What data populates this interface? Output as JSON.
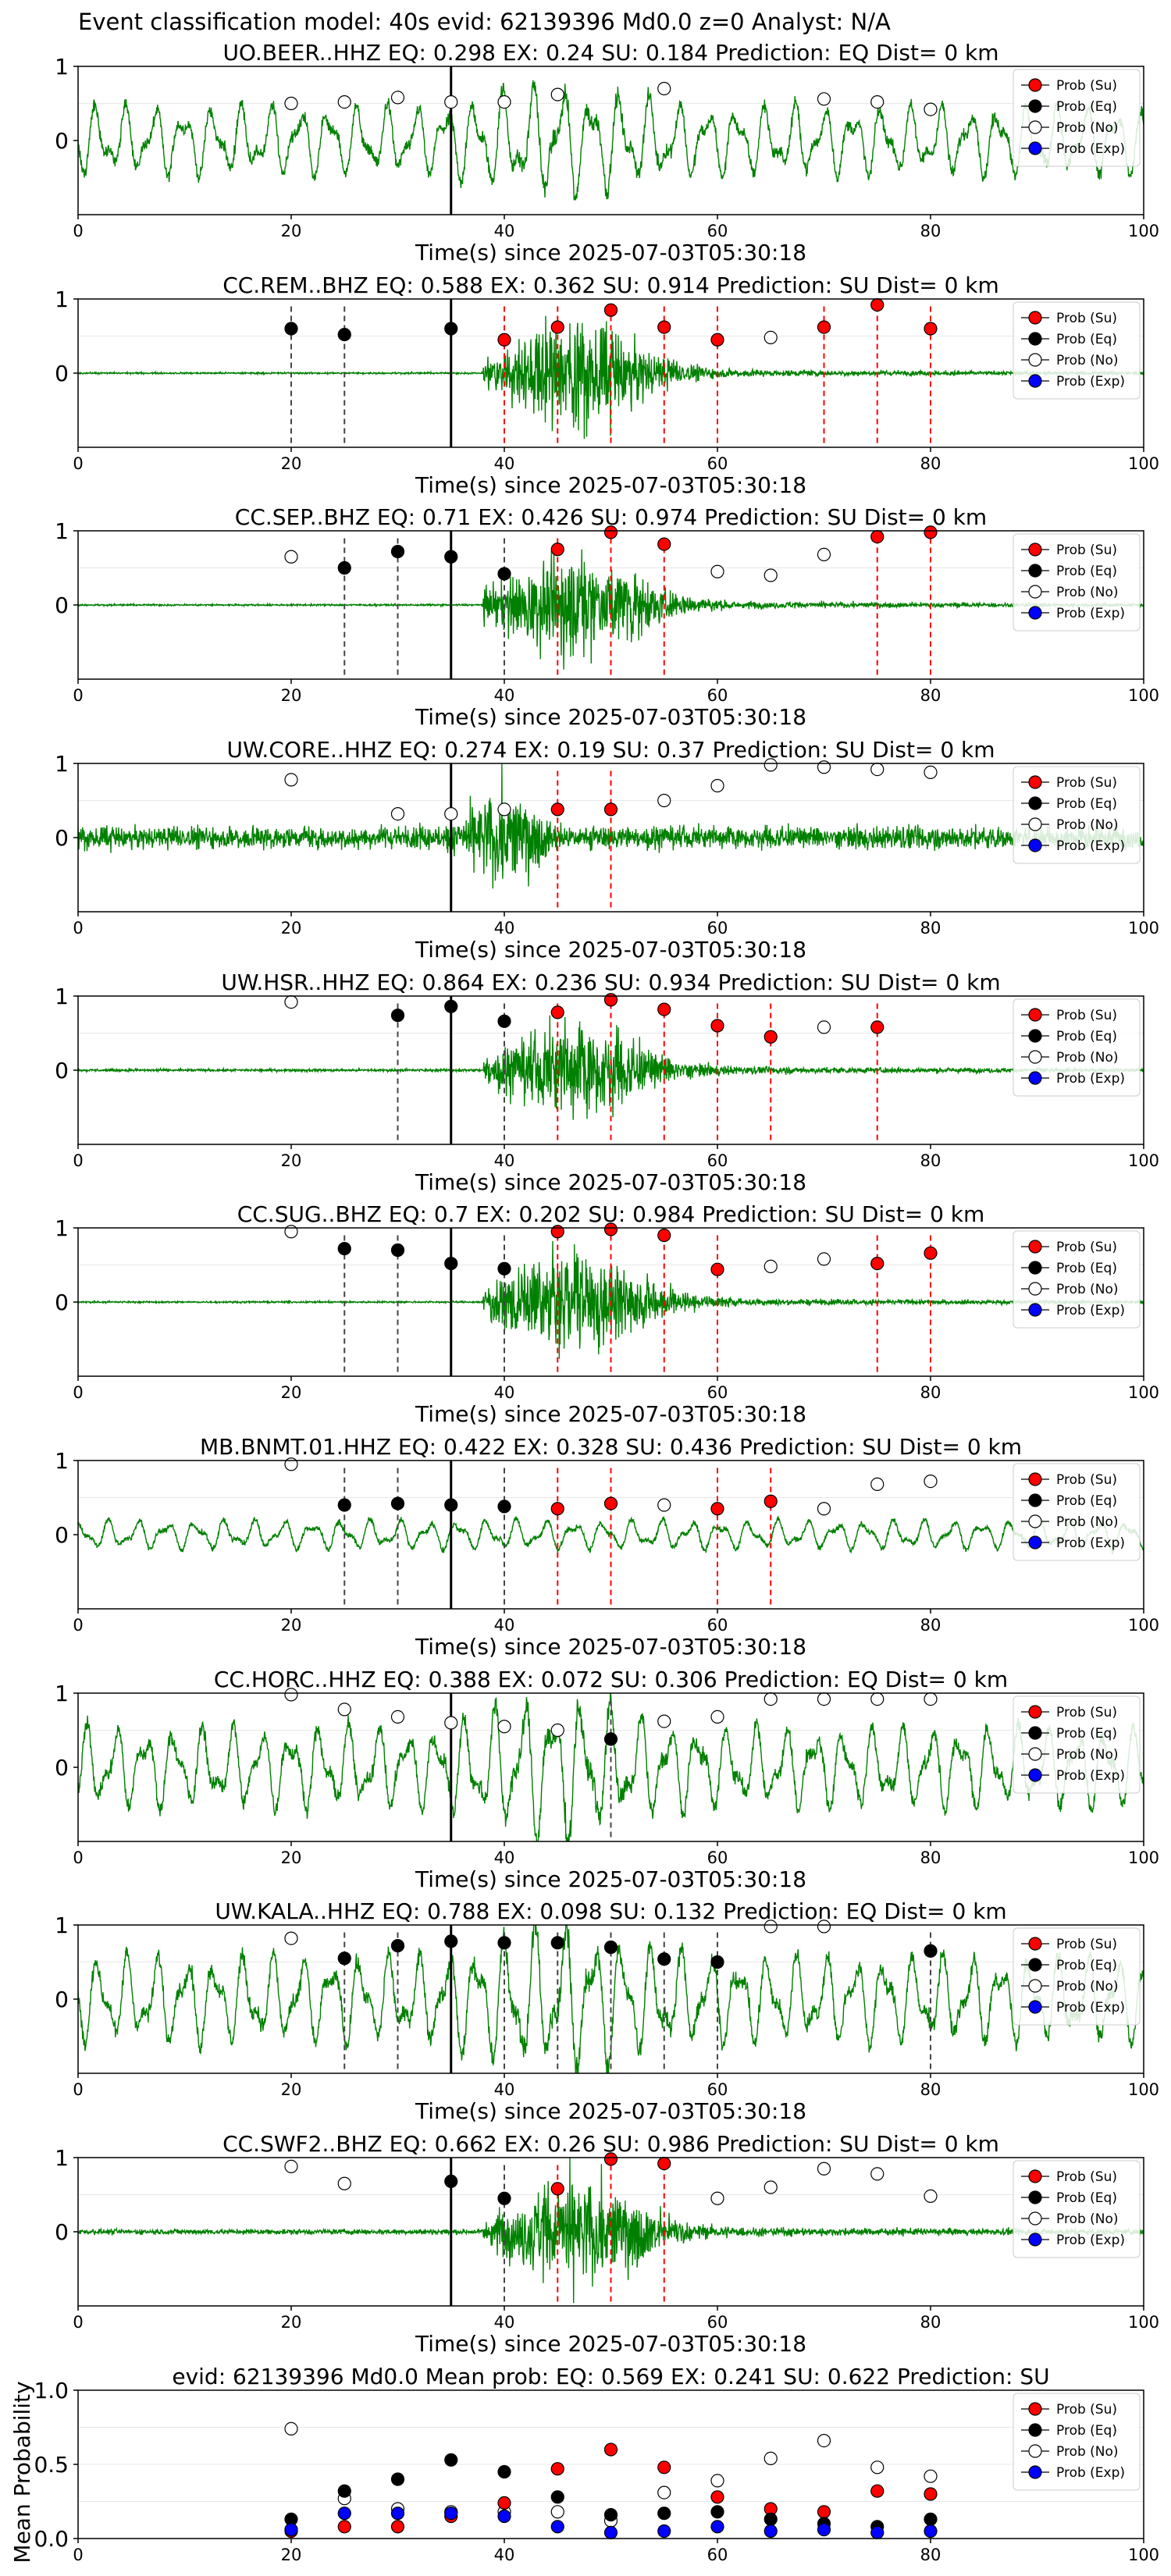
{
  "figure_title": "Event classification model: 40s evid: 62139396 Md0.0 z=0 Analyst: N/A",
  "legend": [
    "Prob (Su)",
    "Prob (Eq)",
    "Prob (No)",
    "Prob (Exp)"
  ],
  "colors": {
    "su": "#ff0000",
    "eq": "#000000",
    "no": "#ffffff",
    "exp": "#0000ff",
    "wave": "#008000",
    "su_line": "#ff0000",
    "eq_line": "#444444"
  },
  "chart_data": [
    {
      "type": "line",
      "title": "UO.BEER..HHZ   EQ: 0.298  EX: 0.24  SU: 0.184   Prediction: EQ    Dist= 0 km",
      "xlabel": "Time(s) since 2025-07-03T05:30:18",
      "ylabel": "",
      "xlim": [
        0,
        100
      ],
      "ylim": [
        -1,
        1
      ],
      "x_ticks": [
        0,
        20,
        40,
        60,
        80,
        100
      ],
      "y_ticks": [
        1,
        0
      ],
      "onset": 35,
      "wave": {
        "style": "oscillating",
        "amp": 0.6,
        "burst": 0.6,
        "start": 0
      },
      "points": {
        "su": [],
        "eq": [],
        "no": [
          [
            20,
            0.5
          ],
          [
            25,
            0.52
          ],
          [
            30,
            0.58
          ],
          [
            35,
            0.52
          ],
          [
            40,
            0.52
          ],
          [
            45,
            0.62
          ],
          [
            55,
            0.7
          ],
          [
            70,
            0.56
          ],
          [
            75,
            0.52
          ],
          [
            80,
            0.42
          ]
        ],
        "exp": []
      },
      "su_lines": [],
      "eq_lines": []
    },
    {
      "type": "line",
      "title": "CC.REM..BHZ   EQ: 0.588  EX: 0.362  SU: 0.914   Prediction: SU    Dist= 0 km",
      "xlabel": "Time(s) since 2025-07-03T05:30:18",
      "ylabel": "",
      "xlim": [
        0,
        100
      ],
      "ylim": [
        -1,
        1
      ],
      "x_ticks": [
        0,
        20,
        40,
        60,
        80,
        100
      ],
      "y_ticks": [
        1,
        0
      ],
      "onset": 35,
      "wave": {
        "style": "quiet_burst",
        "amp": 0.02,
        "burst": 0.95,
        "start": 38
      },
      "points": {
        "su": [
          [
            40,
            0.45
          ],
          [
            45,
            0.62
          ],
          [
            50,
            0.85
          ],
          [
            55,
            0.62
          ],
          [
            60,
            0.45
          ],
          [
            70,
            0.62
          ],
          [
            75,
            0.92
          ],
          [
            80,
            0.6
          ]
        ],
        "eq": [
          [
            20,
            0.6
          ],
          [
            25,
            0.52
          ],
          [
            35,
            0.6
          ]
        ],
        "no": [
          [
            65,
            0.48
          ]
        ],
        "exp": []
      },
      "su_lines": [
        40,
        45,
        50,
        55,
        60,
        70,
        75,
        80
      ],
      "eq_lines": [
        20,
        25
      ]
    },
    {
      "type": "line",
      "title": "CC.SEP..BHZ   EQ: 0.71  EX: 0.426  SU: 0.974   Prediction: SU    Dist= 0 km",
      "xlabel": "Time(s) since 2025-07-03T05:30:18",
      "ylabel": "",
      "xlim": [
        0,
        100
      ],
      "ylim": [
        -1,
        1
      ],
      "x_ticks": [
        0,
        20,
        40,
        60,
        80,
        100
      ],
      "y_ticks": [
        1,
        0
      ],
      "onset": 35,
      "wave": {
        "style": "quiet_burst",
        "amp": 0.02,
        "burst": 0.95,
        "start": 38
      },
      "points": {
        "su": [
          [
            45,
            0.75
          ],
          [
            50,
            0.98
          ],
          [
            55,
            0.82
          ],
          [
            75,
            0.92
          ],
          [
            80,
            0.98
          ]
        ],
        "eq": [
          [
            25,
            0.5
          ],
          [
            30,
            0.72
          ],
          [
            35,
            0.65
          ],
          [
            40,
            0.42
          ]
        ],
        "no": [
          [
            20,
            0.65
          ],
          [
            60,
            0.45
          ],
          [
            65,
            0.4
          ],
          [
            70,
            0.68
          ]
        ],
        "exp": []
      },
      "su_lines": [
        45,
        50,
        55,
        75,
        80
      ],
      "eq_lines": [
        25,
        30,
        40
      ]
    },
    {
      "type": "line",
      "title": "UW.CORE..HHZ   EQ: 0.274  EX: 0.19  SU: 0.37   Prediction: SU    Dist= 0 km",
      "xlabel": "Time(s) since 2025-07-03T05:30:18",
      "ylabel": "",
      "xlim": [
        0,
        100
      ],
      "ylim": [
        -1,
        1
      ],
      "x_ticks": [
        0,
        20,
        40,
        60,
        80,
        100
      ],
      "y_ticks": [
        1,
        0
      ],
      "onset": 35,
      "wave": {
        "style": "noisy_burst",
        "amp": 0.2,
        "burst": 0.95,
        "start": 30
      },
      "points": {
        "su": [
          [
            45,
            0.38
          ],
          [
            50,
            0.38
          ]
        ],
        "eq": [],
        "no": [
          [
            20,
            0.78
          ],
          [
            30,
            0.32
          ],
          [
            35,
            0.32
          ],
          [
            40,
            0.38
          ],
          [
            55,
            0.5
          ],
          [
            60,
            0.7
          ],
          [
            65,
            0.98
          ],
          [
            70,
            0.95
          ],
          [
            75,
            0.92
          ],
          [
            80,
            0.88
          ]
        ],
        "exp": []
      },
      "su_lines": [
        45,
        50
      ],
      "eq_lines": []
    },
    {
      "type": "line",
      "title": "UW.HSR..HHZ   EQ: 0.864  EX: 0.236  SU: 0.934   Prediction: SU    Dist= 0 km",
      "xlabel": "Time(s) since 2025-07-03T05:30:18",
      "ylabel": "",
      "xlim": [
        0,
        100
      ],
      "ylim": [
        -1,
        1
      ],
      "x_ticks": [
        0,
        20,
        40,
        60,
        80,
        100
      ],
      "y_ticks": [
        1,
        0
      ],
      "onset": 35,
      "wave": {
        "style": "quiet_burst",
        "amp": 0.03,
        "burst": 0.85,
        "start": 38
      },
      "points": {
        "su": [
          [
            45,
            0.78
          ],
          [
            50,
            0.95
          ],
          [
            55,
            0.82
          ],
          [
            60,
            0.6
          ],
          [
            65,
            0.45
          ],
          [
            75,
            0.58
          ]
        ],
        "eq": [
          [
            30,
            0.74
          ],
          [
            35,
            0.86
          ],
          [
            40,
            0.66
          ]
        ],
        "no": [
          [
            20,
            0.92
          ],
          [
            70,
            0.58
          ]
        ],
        "exp": []
      },
      "su_lines": [
        45,
        50,
        55,
        60,
        65,
        75
      ],
      "eq_lines": [
        30,
        40
      ]
    },
    {
      "type": "line",
      "title": "CC.SUG..BHZ   EQ: 0.7  EX: 0.202  SU: 0.984   Prediction: SU    Dist= 0 km",
      "xlabel": "Time(s) since 2025-07-03T05:30:18",
      "ylabel": "",
      "xlim": [
        0,
        100
      ],
      "ylim": [
        -1,
        1
      ],
      "x_ticks": [
        0,
        20,
        40,
        60,
        80,
        100
      ],
      "y_ticks": [
        1,
        0
      ],
      "onset": 35,
      "wave": {
        "style": "quiet_burst",
        "amp": 0.02,
        "burst": 0.95,
        "start": 38
      },
      "points": {
        "su": [
          [
            45,
            0.95
          ],
          [
            50,
            0.98
          ],
          [
            55,
            0.9
          ],
          [
            60,
            0.44
          ],
          [
            75,
            0.52
          ],
          [
            80,
            0.66
          ]
        ],
        "eq": [
          [
            25,
            0.72
          ],
          [
            30,
            0.7
          ],
          [
            35,
            0.52
          ],
          [
            40,
            0.45
          ]
        ],
        "no": [
          [
            20,
            0.95
          ],
          [
            65,
            0.48
          ],
          [
            70,
            0.58
          ]
        ],
        "exp": []
      },
      "su_lines": [
        45,
        50,
        55,
        60,
        75,
        80
      ],
      "eq_lines": [
        25,
        30,
        40
      ]
    },
    {
      "type": "line",
      "title": "MB.BNMT.01.HHZ   EQ: 0.422  EX: 0.328  SU: 0.436   Prediction: SU    Dist= 0 km",
      "xlabel": "Time(s) since 2025-07-03T05:30:18",
      "ylabel": "",
      "xlim": [
        0,
        100
      ],
      "ylim": [
        -1,
        1
      ],
      "x_ticks": [
        0,
        20,
        40,
        60,
        80,
        100
      ],
      "y_ticks": [
        1,
        0
      ],
      "onset": 35,
      "wave": {
        "style": "oscillating",
        "amp": 0.25,
        "burst": 0.9,
        "start": 35
      },
      "points": {
        "su": [
          [
            45,
            0.35
          ],
          [
            50,
            0.42
          ],
          [
            60,
            0.35
          ],
          [
            65,
            0.45
          ]
        ],
        "eq": [
          [
            25,
            0.4
          ],
          [
            30,
            0.42
          ],
          [
            35,
            0.4
          ],
          [
            40,
            0.38
          ]
        ],
        "no": [
          [
            20,
            0.95
          ],
          [
            55,
            0.4
          ],
          [
            70,
            0.35
          ],
          [
            75,
            0.68
          ],
          [
            80,
            0.72
          ]
        ],
        "exp": []
      },
      "su_lines": [
        45,
        50,
        60,
        65
      ],
      "eq_lines": [
        25,
        30,
        40
      ]
    },
    {
      "type": "line",
      "title": "CC.HORC..HHZ   EQ: 0.388  EX: 0.072  SU: 0.306   Prediction: EQ    Dist= 0 km",
      "xlabel": "Time(s) since 2025-07-03T05:30:18",
      "ylabel": "",
      "xlim": [
        0,
        100
      ],
      "ylim": [
        -1,
        1
      ],
      "x_ticks": [
        0,
        20,
        40,
        60,
        80,
        100
      ],
      "y_ticks": [
        1,
        0
      ],
      "onset": 35,
      "wave": {
        "style": "oscillating",
        "amp": 0.7,
        "burst": 0.75,
        "start": 0
      },
      "points": {
        "su": [],
        "eq": [
          [
            50,
            0.38
          ]
        ],
        "no": [
          [
            20,
            0.98
          ],
          [
            25,
            0.78
          ],
          [
            30,
            0.68
          ],
          [
            35,
            0.6
          ],
          [
            40,
            0.55
          ],
          [
            45,
            0.5
          ],
          [
            55,
            0.62
          ],
          [
            60,
            0.68
          ],
          [
            65,
            0.92
          ],
          [
            70,
            0.92
          ],
          [
            75,
            0.92
          ],
          [
            80,
            0.92
          ]
        ],
        "exp": []
      },
      "su_lines": [],
      "eq_lines": [
        50
      ]
    },
    {
      "type": "line",
      "title": "UW.KALA..HHZ   EQ: 0.788  EX: 0.098  SU: 0.132   Prediction: EQ    Dist= 0 km",
      "xlabel": "Time(s) since 2025-07-03T05:30:18",
      "ylabel": "",
      "xlim": [
        0,
        100
      ],
      "ylim": [
        -1,
        1
      ],
      "x_ticks": [
        0,
        20,
        40,
        60,
        80,
        100
      ],
      "y_ticks": [
        1,
        0
      ],
      "onset": 35,
      "wave": {
        "style": "oscillating",
        "amp": 0.75,
        "burst": 0.75,
        "start": 0
      },
      "points": {
        "su": [],
        "eq": [
          [
            25,
            0.55
          ],
          [
            30,
            0.72
          ],
          [
            35,
            0.78
          ],
          [
            40,
            0.76
          ],
          [
            45,
            0.76
          ],
          [
            50,
            0.7
          ],
          [
            55,
            0.54
          ],
          [
            60,
            0.5
          ],
          [
            80,
            0.65
          ]
        ],
        "no": [
          [
            20,
            0.82
          ],
          [
            65,
            0.98
          ],
          [
            70,
            0.98
          ]
        ],
        "exp": []
      },
      "su_lines": [],
      "eq_lines": [
        25,
        30,
        40,
        45,
        50,
        55,
        60,
        80
      ]
    },
    {
      "type": "line",
      "title": "CC.SWF2..BHZ   EQ: 0.662  EX: 0.26  SU: 0.986   Prediction: SU    Dist= 0 km",
      "xlabel": "Time(s) since 2025-07-03T05:30:18",
      "ylabel": "",
      "xlim": [
        0,
        100
      ],
      "ylim": [
        -1,
        1
      ],
      "x_ticks": [
        0,
        20,
        40,
        60,
        80,
        100
      ],
      "y_ticks": [
        1,
        0
      ],
      "onset": 35,
      "wave": {
        "style": "quiet_burst",
        "amp": 0.06,
        "burst": 0.95,
        "start": 38
      },
      "points": {
        "su": [
          [
            45,
            0.58
          ],
          [
            50,
            0.98
          ],
          [
            55,
            0.92
          ]
        ],
        "eq": [
          [
            35,
            0.68
          ],
          [
            40,
            0.45
          ]
        ],
        "no": [
          [
            20,
            0.88
          ],
          [
            25,
            0.65
          ],
          [
            60,
            0.45
          ],
          [
            65,
            0.6
          ],
          [
            70,
            0.85
          ],
          [
            75,
            0.78
          ],
          [
            80,
            0.48
          ]
        ],
        "exp": []
      },
      "su_lines": [
        45,
        50,
        55
      ],
      "eq_lines": [
        40
      ]
    },
    {
      "type": "scatter",
      "title": "evid: 62139396  Md0.0   Mean prob:   EQ: 0.569  EX: 0.241  SU: 0.622   Prediction: SU",
      "xlabel": "",
      "ylabel": "Mean Probability",
      "xlim": [
        0,
        100
      ],
      "ylim": [
        0,
        1
      ],
      "x_ticks": [
        0,
        20,
        40,
        60,
        80,
        100
      ],
      "y_ticks": [
        0.0,
        0.5,
        1.0
      ],
      "onset": null,
      "wave": null,
      "points": {
        "su": [
          [
            20,
            0.05
          ],
          [
            25,
            0.08
          ],
          [
            30,
            0.08
          ],
          [
            35,
            0.15
          ],
          [
            40,
            0.24
          ],
          [
            45,
            0.47
          ],
          [
            50,
            0.6
          ],
          [
            55,
            0.48
          ],
          [
            60,
            0.28
          ],
          [
            65,
            0.2
          ],
          [
            70,
            0.18
          ],
          [
            75,
            0.32
          ],
          [
            80,
            0.3
          ]
        ],
        "eq": [
          [
            20,
            0.13
          ],
          [
            25,
            0.32
          ],
          [
            30,
            0.4
          ],
          [
            35,
            0.53
          ],
          [
            40,
            0.45
          ],
          [
            45,
            0.28
          ],
          [
            50,
            0.16
          ],
          [
            55,
            0.17
          ],
          [
            60,
            0.18
          ],
          [
            65,
            0.13
          ],
          [
            70,
            0.1
          ],
          [
            75,
            0.08
          ],
          [
            80,
            0.13
          ]
        ],
        "no": [
          [
            20,
            0.74
          ],
          [
            25,
            0.27
          ],
          [
            30,
            0.2
          ],
          [
            35,
            0.18
          ],
          [
            40,
            0.18
          ],
          [
            45,
            0.18
          ],
          [
            50,
            0.12
          ],
          [
            55,
            0.31
          ],
          [
            60,
            0.39
          ],
          [
            65,
            0.54
          ],
          [
            70,
            0.66
          ],
          [
            75,
            0.48
          ],
          [
            80,
            0.42
          ]
        ],
        "exp": [
          [
            20,
            0.06
          ],
          [
            25,
            0.17
          ],
          [
            30,
            0.17
          ],
          [
            35,
            0.17
          ],
          [
            40,
            0.15
          ],
          [
            45,
            0.08
          ],
          [
            50,
            0.04
          ],
          [
            55,
            0.05
          ],
          [
            60,
            0.08
          ],
          [
            65,
            0.05
          ],
          [
            70,
            0.06
          ],
          [
            75,
            0.04
          ],
          [
            80,
            0.05
          ]
        ]
      },
      "su_lines": [],
      "eq_lines": []
    }
  ]
}
